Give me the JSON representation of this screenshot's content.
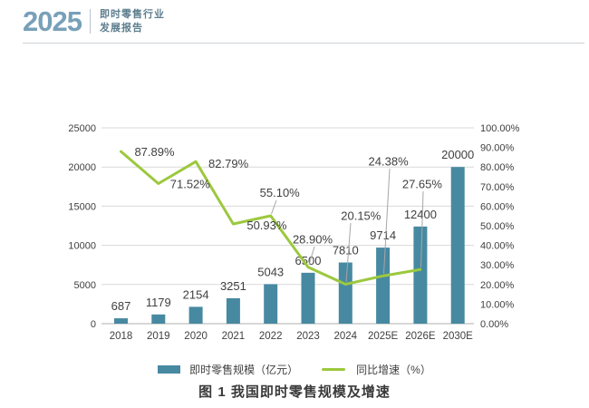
{
  "header": {
    "year": "2025",
    "title_line1": "即时零售行业",
    "title_line2": "发展报告"
  },
  "chart_data": {
    "type": "bar+line",
    "categories": [
      "2018",
      "2019",
      "2020",
      "2021",
      "2022",
      "2023",
      "2024",
      "2025E",
      "2026E",
      "2030E"
    ],
    "series": [
      {
        "name": "即时零售规模（亿元）",
        "type": "bar",
        "values": [
          687,
          1179,
          2154,
          3251,
          5043,
          6500,
          7810,
          9714,
          12400,
          20000
        ],
        "labels": [
          "687",
          "1179",
          "2154",
          "3251",
          "5043",
          "6500",
          "7810",
          "9714",
          "12400",
          "20000"
        ],
        "color": "#4789a1"
      },
      {
        "name": "同比增速（%）",
        "type": "line",
        "values": [
          87.89,
          71.52,
          82.79,
          50.93,
          55.1,
          28.9,
          20.15,
          24.38,
          27.65,
          null
        ],
        "labels": [
          "87.89%",
          "71.52%",
          "82.79%",
          "50.93%",
          "55.10%",
          "28.90%",
          "20.15%",
          "24.38%",
          "27.65%",
          ""
        ],
        "color": "#9cc83e"
      }
    ],
    "left_axis": {
      "min": 0,
      "max": 25000,
      "step": 5000,
      "ticks_top_down": [
        "25000",
        "20000",
        "15000",
        "10000",
        "5000",
        "0"
      ]
    },
    "right_axis": {
      "min": 0,
      "max": 100,
      "step": 10,
      "ticks_top_down": [
        "100.00%",
        "90.00%",
        "80.00%",
        "70.00%",
        "60.00%",
        "50.00%",
        "40.00%",
        "30.00%",
        "20.00%",
        "10.00%",
        "0.00%"
      ]
    },
    "grid": true,
    "legend_position": "bottom",
    "caption": "图 1 我国即时零售规模及增速",
    "colors": {
      "gridline": "#d9d9d9",
      "axis_line": "#bfbfbf",
      "leader_line": "#a6a6a6",
      "tick_text": "#404040",
      "data_label_text": "#3f3f3f"
    }
  }
}
